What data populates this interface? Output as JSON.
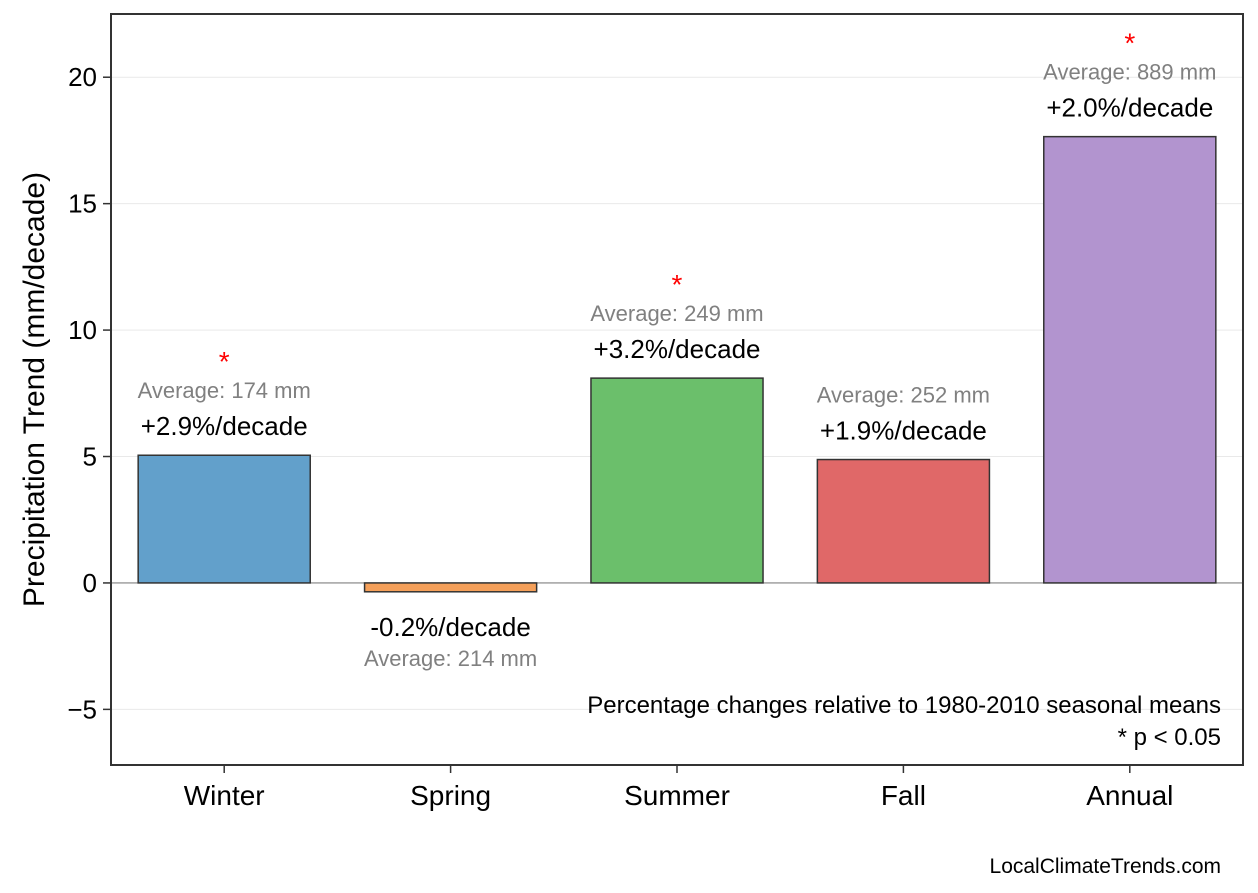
{
  "chart_data": {
    "type": "bar",
    "title": "",
    "xlabel": "",
    "ylabel": "Precipitation Trend (mm/decade)",
    "ylim": [
      -7.2,
      22.5
    ],
    "yticks": [
      -5,
      0,
      5,
      10,
      15,
      20
    ],
    "ytick_labels": [
      "−5",
      "0",
      "5",
      "10",
      "15",
      "20"
    ],
    "grid": true,
    "categories": [
      "Winter",
      "Spring",
      "Summer",
      "Fall",
      "Annual"
    ],
    "values": [
      5.05,
      -0.35,
      8.1,
      4.88,
      17.65
    ],
    "colors": [
      "#62a0cb",
      "#f5a05a",
      "#6bbf6b",
      "#e06868",
      "#b294cf"
    ],
    "pct_labels": [
      "+2.9%/decade",
      "-0.2%/decade",
      "+3.2%/decade",
      "+1.9%/decade",
      "+2.0%/decade"
    ],
    "avg_labels": [
      "Average: 174 mm",
      "Average: 214 mm",
      "Average: 249 mm",
      "Average: 252 mm",
      "Average: 889 mm"
    ],
    "significant": [
      true,
      false,
      true,
      false,
      true
    ],
    "sig_marker": "*",
    "sig_color": "#ff0000",
    "notes": [
      "Percentage changes relative to 1980-2010 seasonal means",
      "* p < 0.05"
    ],
    "credit": "LocalClimateTrends.com"
  }
}
